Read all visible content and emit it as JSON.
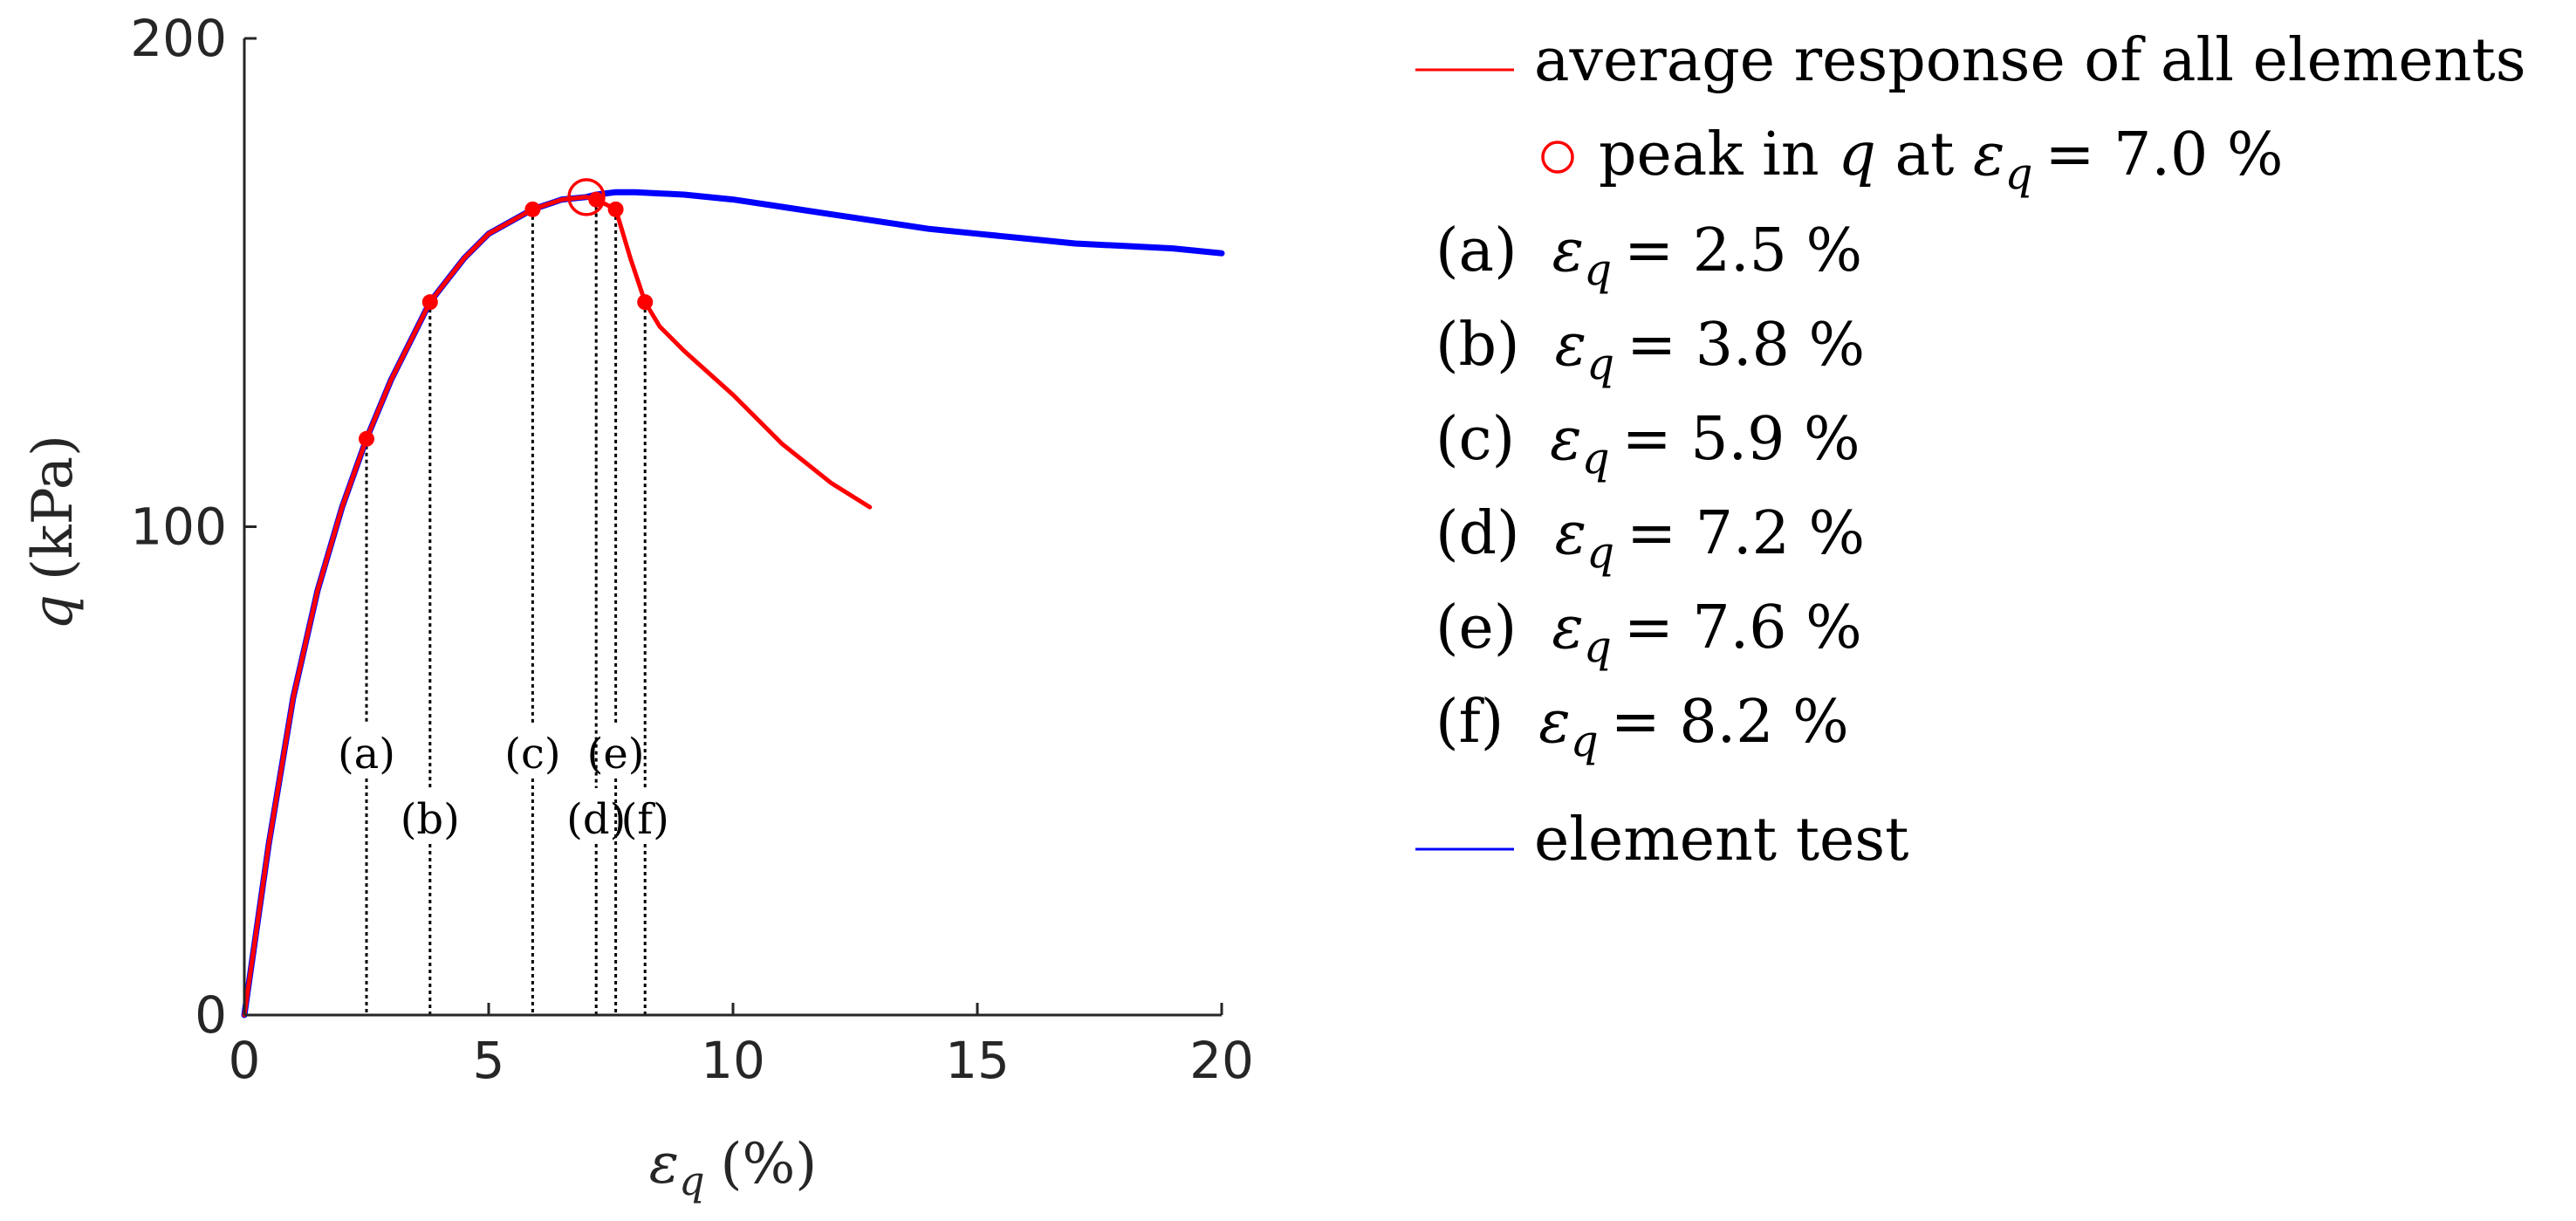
{
  "chart_data": {
    "type": "line",
    "x_axis": {
      "label_symbol": "ε",
      "label_sub": "q",
      "label_unit": "(%)",
      "range": [
        0,
        20
      ],
      "ticks": [
        0,
        5,
        10,
        15,
        20
      ],
      "tick_labels": [
        "0",
        "5",
        "10",
        "15",
        "20"
      ]
    },
    "y_axis": {
      "label_symbol": "q",
      "label_unit": "(kPa)",
      "range": [
        0,
        200
      ],
      "ticks": [
        0,
        100,
        200
      ],
      "tick_labels": [
        "0",
        "100",
        "200"
      ]
    },
    "series": [
      {
        "name": "element test",
        "color": "#0000ff",
        "x": [
          0,
          0.5,
          1.0,
          1.5,
          2.0,
          2.5,
          3.0,
          3.8,
          4.5,
          5.0,
          5.9,
          6.5,
          7.0,
          7.2,
          7.6,
          8.0,
          9.0,
          10.0,
          11.0,
          12.0,
          13.0,
          14.0,
          15.0,
          16.0,
          17.0,
          18.0,
          19.0,
          20.0
        ],
        "y": [
          0,
          35,
          65,
          87,
          104,
          118,
          130,
          146,
          155,
          160,
          165,
          167,
          167.5,
          168,
          168.5,
          168.5,
          168,
          167,
          165.5,
          164,
          162.5,
          161,
          160,
          159,
          158,
          157.5,
          157,
          156
        ]
      },
      {
        "name": "average response of all elements",
        "color": "#ff0000",
        "x": [
          0,
          0.5,
          1.0,
          1.5,
          2.0,
          2.5,
          3.0,
          3.8,
          4.5,
          5.0,
          5.9,
          6.5,
          7.0,
          7.2,
          7.6,
          7.9,
          8.2,
          8.5,
          9.0,
          10.0,
          11.0,
          12.0,
          12.8
        ],
        "y": [
          0,
          35,
          65,
          87,
          104,
          118,
          130,
          146,
          155,
          160,
          165,
          167,
          167.5,
          167,
          165,
          155,
          146,
          141,
          136,
          127,
          117,
          109,
          104
        ]
      }
    ],
    "peak": {
      "x": 7.0,
      "y": 167.5
    },
    "markers": [
      {
        "label": "(a)",
        "x": 2.5,
        "y": 118,
        "label_row": 0
      },
      {
        "label": "(b)",
        "x": 3.8,
        "y": 146,
        "label_row": 1
      },
      {
        "label": "(c)",
        "x": 5.9,
        "y": 165,
        "label_row": 0
      },
      {
        "label": "(d)",
        "x": 7.2,
        "y": 167,
        "label_row": 1
      },
      {
        "label": "(e)",
        "x": 7.6,
        "y": 165,
        "label_row": 0
      },
      {
        "label": "(f)",
        "x": 8.2,
        "y": 146,
        "label_row": 1
      }
    ],
    "legend": {
      "placement": "right",
      "avg": "average response of all elements",
      "peak_prefix": "peak in",
      "peak_q": "q",
      "peak_at": "at",
      "peak_eps": "ε",
      "peak_sub": "q",
      "peak_value": "= 7.0 %",
      "items": [
        {
          "tag": "(a)",
          "eps": "ε",
          "sub": "q",
          "value": "= 2.5 %"
        },
        {
          "tag": "(b)",
          "eps": "ε",
          "sub": "q",
          "value": "= 3.8 %"
        },
        {
          "tag": "(c)",
          "eps": "ε",
          "sub": "q",
          "value": "= 5.9 %"
        },
        {
          "tag": "(d)",
          "eps": "ε",
          "sub": "q",
          "value": "= 7.2 %"
        },
        {
          "tag": "(e)",
          "eps": "ε",
          "sub": "q",
          "value": "= 7.6 %"
        },
        {
          "tag": "(f)",
          "eps": "ε",
          "sub": "q",
          "value": "= 8.2 %"
        }
      ],
      "element": "element test"
    }
  }
}
